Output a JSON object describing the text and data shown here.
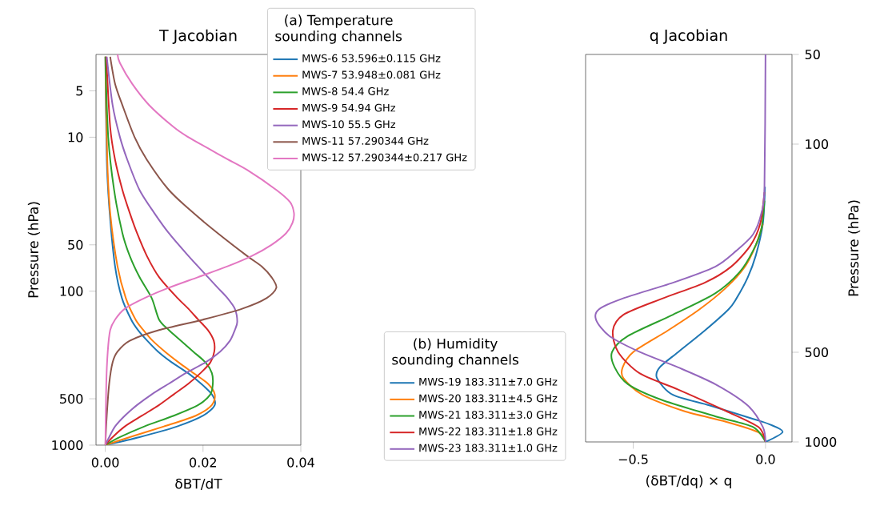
{
  "chart_data": [
    {
      "type": "line",
      "title": "T Jacobian",
      "xlabel": "δBT/dT",
      "ylabel": "Pressure (hPa)",
      "legend_title": "(a) Temperature sounding channels",
      "legend": "top right",
      "log": "y",
      "marker": "none",
      "line_style": "solid",
      "xlim": [
        -0.0019,
        0.04
      ],
      "ylim": [
        1000,
        2.9
      ],
      "xticks": [
        {
          "value": 0,
          "label": "0.00"
        },
        {
          "value": 0.02,
          "label": "0.02"
        },
        {
          "value": 0.04,
          "label": "0.04"
        }
      ],
      "yticks": [
        5,
        10,
        50,
        100,
        500,
        1000
      ],
      "series": [
        {
          "name": "MWS-6  53.596±0.115 GHz",
          "color": "#1f77b4",
          "x": [
            0,
            0.007,
            0.0147,
            0.02,
            0.0224,
            0.0218,
            0.0196,
            0.0169,
            0.0136,
            0.0108,
            0.0086,
            0.0067,
            0.0053,
            0.0034,
            0.002,
            0.0009,
            0.0003,
            0
          ],
          "values": [
            1000,
            887,
            756,
            644,
            549,
            468,
            399,
            340,
            290,
            247,
            210,
            179,
            153,
            111,
            69,
            31,
            14,
            3
          ]
        },
        {
          "name": "MWS-7  53.948±0.081 GHz",
          "color": "#ff7f0e",
          "x": [
            0,
            0.005,
            0.012,
            0.0185,
            0.0218,
            0.0224,
            0.021,
            0.018,
            0.015,
            0.0122,
            0.0097,
            0.0078,
            0.0062,
            0.0042,
            0.0025,
            0.001,
            0.0004,
            0
          ],
          "values": [
            1000,
            887,
            756,
            644,
            549,
            468,
            399,
            340,
            290,
            247,
            210,
            179,
            153,
            111,
            69,
            31,
            14,
            3
          ]
        },
        {
          "name": "MWS-8  54.4 GHz",
          "color": "#2ca02c",
          "x": [
            0,
            0.003,
            0.008,
            0.014,
            0.019,
            0.0215,
            0.022,
            0.0218,
            0.0205,
            0.018,
            0.0155,
            0.013,
            0.011,
            0.0095,
            0.007,
            0.005,
            0.0035,
            0.0018,
            0.0006,
            0
          ],
          "values": [
            1000,
            887,
            756,
            644,
            549,
            468,
            399,
            340,
            290,
            247,
            210,
            179,
            153,
            111,
            81,
            59,
            42,
            22,
            10,
            3
          ]
        },
        {
          "name": "MWS-9  54.94 GHz",
          "color": "#d62728",
          "x": [
            0,
            0.0015,
            0.004,
            0.0075,
            0.011,
            0.014,
            0.017,
            0.0195,
            0.0215,
            0.0223,
            0.0222,
            0.021,
            0.019,
            0.017,
            0.0148,
            0.011,
            0.0085,
            0.0065,
            0.005,
            0.0035,
            0.002,
            0.001,
            0.0002
          ],
          "values": [
            1000,
            887,
            756,
            644,
            549,
            468,
            399,
            340,
            290,
            247,
            210,
            179,
            153,
            130,
            111,
            81,
            59,
            42,
            31,
            22,
            14,
            8.6,
            3
          ]
        },
        {
          "name": "MWS-10  55.5 GHz",
          "color": "#9467bd",
          "x": [
            0,
            0.0008,
            0.002,
            0.004,
            0.0065,
            0.0095,
            0.013,
            0.0165,
            0.0205,
            0.0235,
            0.0255,
            0.0265,
            0.027,
            0.0265,
            0.025,
            0.023,
            0.021,
            0.017,
            0.013,
            0.01,
            0.007,
            0.0045,
            0.003,
            0.0015,
            0.0003
          ],
          "values": [
            1000,
            887,
            756,
            644,
            549,
            468,
            399,
            340,
            290,
            247,
            210,
            179,
            158,
            130,
            111,
            95,
            81,
            59,
            42,
            31,
            22,
            14,
            10,
            6.2,
            3
          ]
        },
        {
          "name": "MWS-11  57.290344 GHz",
          "color": "#8c564b",
          "x": [
            0,
            0.0003,
            0.0008,
            0.0015,
            0.0025,
            0.005,
            0.011,
            0.02,
            0.028,
            0.033,
            0.035,
            0.034,
            0.032,
            0.029,
            0.023,
            0.018,
            0.013,
            0.0085,
            0.006,
            0.0035,
            0.002,
            0.001
          ],
          "values": [
            1000,
            644,
            399,
            290,
            247,
            210,
            179,
            153,
            130,
            111,
            95,
            81,
            69,
            59,
            42,
            31,
            22,
            14,
            10,
            6.2,
            4.5,
            3
          ]
        },
        {
          "name": "MWS-12  57.290344±0.217 GHz",
          "color": "#e377c2",
          "x": [
            0,
            0.0002,
            0.0005,
            0.001,
            0.002,
            0.004,
            0.008,
            0.013,
            0.019,
            0.025,
            0.03,
            0.034,
            0.037,
            0.0383,
            0.0386,
            0.0378,
            0.035,
            0.029,
            0.025,
            0.021,
            0.017,
            0.014,
            0.009,
            0.0055,
            0.003,
            0.0025
          ],
          "values": [
            1000,
            399,
            247,
            179,
            153,
            130,
            111,
            95,
            81,
            69,
            59,
            50,
            42,
            36,
            31,
            26.4,
            22,
            16.3,
            13.9,
            11.8,
            10,
            8.6,
            6.2,
            4.5,
            3.3,
            2.9
          ]
        }
      ]
    },
    {
      "type": "line",
      "title": "q Jacobian",
      "xlabel": "(δBT/dq) × q",
      "ylabel": "Pressure (hPa)",
      "legend_title": "(b) Humidity sounding channels",
      "legend": "bottom left",
      "log": "y",
      "marker": "none",
      "line_style": "solid",
      "xlim": [
        -0.68,
        0.1
      ],
      "ylim": [
        1000,
        50
      ],
      "xticks": [
        {
          "value": -0.5,
          "label": "−0.5"
        },
        {
          "value": 0,
          "label": "0.0"
        }
      ],
      "yticks": [
        50,
        100,
        500,
        1000
      ],
      "series": [
        {
          "name": "MWS-19  183.311±7.0 GHz",
          "color": "#1f77b4",
          "x": [
            0,
            0.065,
            0.014,
            -0.047,
            -0.21,
            -0.35,
            -0.41,
            -0.4,
            -0.33,
            -0.23,
            -0.14,
            -0.11,
            -0.067,
            -0.037,
            -0.01,
            -0.002,
            null
          ],
          "values": [
            1000,
            925,
            872,
            837,
            755,
            695,
            611,
            562,
            499,
            423,
            359,
            330,
            280,
            237,
            185,
            139,
            null
          ]
        },
        {
          "name": "MWS-20  183.311±4.5 GHz",
          "color": "#ff7f0e",
          "x": [
            0,
            -0.027,
            -0.15,
            -0.31,
            -0.465,
            -0.537,
            -0.54,
            -0.5,
            -0.37,
            -0.25,
            -0.15,
            -0.078,
            -0.037,
            -0.01,
            null,
            null
          ],
          "values": [
            1000,
            928,
            855,
            787,
            695,
            611,
            562,
            499,
            423,
            359,
            304,
            258,
            219,
            185,
            null,
            null
          ]
        },
        {
          "name": "MWS-21  183.311±3.0 GHz",
          "color": "#2ca02c",
          "x": [
            0,
            -0.047,
            -0.19,
            -0.39,
            -0.52,
            -0.57,
            -0.58,
            -0.52,
            -0.35,
            -0.19,
            -0.098,
            -0.047,
            -0.016,
            -0.004,
            null
          ],
          "values": [
            1000,
            891,
            820,
            724,
            640,
            562,
            499,
            441,
            374,
            317,
            269,
            228,
            193,
            155,
            null
          ]
        },
        {
          "name": "MWS-22  183.311±1.8 GHz",
          "color": "#d62728",
          "x": [
            0,
            -0.027,
            -0.15,
            -0.33,
            -0.475,
            -0.557,
            -0.577,
            -0.537,
            -0.39,
            -0.23,
            -0.13,
            -0.057,
            -0.02,
            -0.004,
            null
          ],
          "values": [
            1000,
            891,
            787,
            667,
            589,
            499,
            423,
            374,
            330,
            292,
            258,
            219,
            185,
            145,
            null
          ]
        },
        {
          "name": "MWS-23  183.311±1.0 GHz",
          "color": "#9467bd",
          "x": [
            0,
            -0.01,
            -0.067,
            -0.19,
            -0.33,
            -0.475,
            -0.59,
            -0.64,
            -0.63,
            -0.54,
            -0.35,
            -0.19,
            -0.11,
            -0.047,
            -0.016,
            -0.004,
            0
          ],
          "values": [
            1000,
            891,
            755,
            640,
            562,
            499,
            441,
            390,
            359,
            330,
            292,
            258,
            228,
            201,
            171,
            139,
            50
          ]
        }
      ]
    }
  ]
}
